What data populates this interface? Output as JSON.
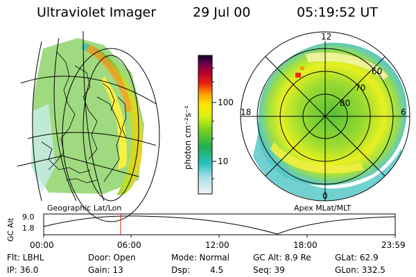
{
  "header": {
    "title": "Ultraviolet Imager",
    "date": "29 Jul 00",
    "time": "05:19:52 UT"
  },
  "colorbar": {
    "unit_label": "photon cm⁻²s⁻¹",
    "ticks": [
      "100",
      "10"
    ]
  },
  "left_map": {
    "caption": "Geographic Lat/Lon"
  },
  "polar_map": {
    "caption": "Apex MLat/MLT",
    "mlt_labels": {
      "top": "12",
      "left": "18",
      "right": "6",
      "bottom": "0"
    },
    "lat_labels": [
      "60",
      "70",
      "80"
    ]
  },
  "altitude_plot": {
    "ylabel": "GC Alt",
    "y_ticks": [
      "9.0",
      "1.8"
    ],
    "x_ticks": [
      "00:00",
      "06:00",
      "12:00",
      "18:00",
      "23:59"
    ],
    "marker_time": "05:19:52"
  },
  "status": {
    "filter": "Flt: LBHL",
    "ip": "IP: 36.0",
    "door": "Door: Open",
    "gain": "Gain: 13",
    "mode": "Mode: Normal",
    "dsp_label": "Dsp:",
    "dsp_value": "4.5",
    "gc_alt": "GC Alt: 8.9 Re",
    "seq": "Seq: 39",
    "glat": "GLat:  62.9",
    "glon": "GLon: 332.5"
  },
  "colors": {
    "background": "#ffffff",
    "marker": "#d01818",
    "grid": "#000000"
  }
}
